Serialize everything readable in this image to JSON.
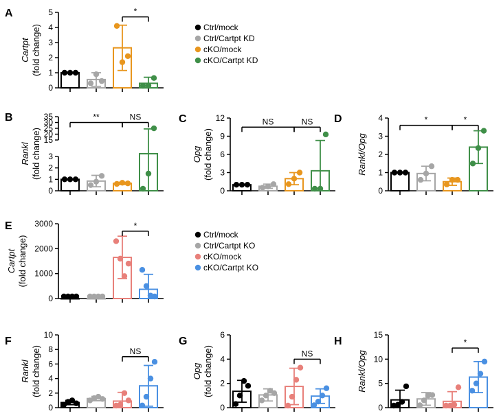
{
  "figure": {
    "legend_top": {
      "entries": [
        {
          "label": "Ctrl/mock",
          "color": "#000000"
        },
        {
          "label": "Ctrl/Cartpt KD",
          "color": "#a6a6a6"
        },
        {
          "label": "cKO/mock",
          "color": "#e8961e"
        },
        {
          "label": "cKO/Cartpt KD",
          "color": "#3f8f48"
        }
      ]
    },
    "legend_bottom": {
      "entries": [
        {
          "label": "Ctrl/mock",
          "color": "#000000"
        },
        {
          "label": "Ctrl/Cartpt KO",
          "color": "#a6a6a6"
        },
        {
          "label": "cKO/mock",
          "color": "#e8807a"
        },
        {
          "label": "cKO/Cartpt KO",
          "color": "#4a90e2"
        }
      ]
    }
  },
  "chart_data": [
    {
      "id": "A",
      "type": "bar",
      "panel_label": "A",
      "ylabel_gene": "Cartpt",
      "ylabel_unit": "(fold change)",
      "ylim": [
        0,
        5
      ],
      "yticks": [
        0,
        1,
        2,
        3,
        4,
        5
      ],
      "ytick_labels": [
        "0",
        "1",
        "2",
        "3",
        "4",
        "5"
      ],
      "colors": [
        "#000000",
        "#a6a6a6",
        "#e8961e",
        "#3f8f48"
      ],
      "means": [
        1.0,
        0.55,
        2.65,
        0.3
      ],
      "sd": [
        0.0,
        0.45,
        1.5,
        0.4
      ],
      "points": [
        [
          1.0,
          1.0,
          1.0
        ],
        [
          0.3,
          0.9,
          0.45
        ],
        [
          4.1,
          1.7,
          2.1
        ],
        [
          0.1,
          0.15,
          0.65
        ]
      ],
      "significance": [
        {
          "from": 2,
          "to": 3,
          "label": "*",
          "y": 4.7
        }
      ]
    },
    {
      "id": "B",
      "type": "bar",
      "panel_label": "B",
      "ylabel_gene": "Rankl",
      "ylabel_unit": "(fold change)",
      "broken_axis": true,
      "ylim": [
        0,
        35
      ],
      "yticks": [
        0,
        1,
        2,
        3,
        15,
        20,
        25,
        30,
        35
      ],
      "ytick_labels": [
        "0",
        "1",
        "2",
        "3",
        "15",
        "20",
        "25",
        "30",
        "35"
      ],
      "colors": [
        "#000000",
        "#a6a6a6",
        "#e8961e",
        "#3f8f48"
      ],
      "means": [
        1.0,
        0.85,
        0.65,
        10.5
      ],
      "sd": [
        0.0,
        0.5,
        0.1,
        14.0
      ],
      "points": [
        [
          1.0,
          1.0,
          1.0
        ],
        [
          0.5,
          0.8,
          1.3
        ],
        [
          0.6,
          0.7,
          0.65
        ],
        [
          0.1,
          1.5,
          25.0
        ]
      ],
      "significance": [
        {
          "from": 0,
          "to": 2,
          "label": "**",
          "y": 30
        },
        {
          "from": 2,
          "to": 3,
          "label": "NS",
          "y": 30
        }
      ]
    },
    {
      "id": "C",
      "type": "bar",
      "panel_label": "C",
      "ylabel_gene": "Opg",
      "ylabel_unit": "(fold change)",
      "ylim": [
        0,
        12
      ],
      "yticks": [
        0,
        3,
        6,
        9,
        12
      ],
      "ytick_labels": [
        "0",
        "3",
        "6",
        "9",
        "12"
      ],
      "colors": [
        "#000000",
        "#a6a6a6",
        "#e8961e",
        "#3f8f48"
      ],
      "means": [
        1.0,
        0.75,
        2.0,
        3.3
      ],
      "sd": [
        0.0,
        0.35,
        1.0,
        5.0
      ],
      "points": [
        [
          1.0,
          1.0,
          1.0
        ],
        [
          0.5,
          0.7,
          1.1
        ],
        [
          1.1,
          2.0,
          3.0
        ],
        [
          0.2,
          0.3,
          9.3
        ]
      ],
      "significance": [
        {
          "from": 0,
          "to": 2,
          "label": "NS",
          "y": 10.5
        },
        {
          "from": 2,
          "to": 3,
          "label": "NS",
          "y": 10.5
        }
      ]
    },
    {
      "id": "D",
      "type": "bar",
      "panel_label": "D",
      "ylabel_gene": "Rankl/Opg",
      "ylabel_unit": "",
      "ylim": [
        0,
        4
      ],
      "yticks": [
        0,
        1,
        2,
        3,
        4
      ],
      "ytick_labels": [
        "0",
        "1",
        "2",
        "3",
        "4"
      ],
      "colors": [
        "#000000",
        "#a6a6a6",
        "#e8961e",
        "#3f8f48"
      ],
      "means": [
        1.0,
        0.95,
        0.5,
        2.4
      ],
      "sd": [
        0.0,
        0.4,
        0.2,
        0.9
      ],
      "points": [
        [
          1.0,
          1.0,
          1.0
        ],
        [
          0.6,
          0.95,
          1.35
        ],
        [
          0.35,
          0.6,
          0.6
        ],
        [
          1.5,
          2.35,
          3.3
        ]
      ],
      "significance": [
        {
          "from": 0,
          "to": 2,
          "label": "*",
          "y": 3.6
        },
        {
          "from": 2,
          "to": 3,
          "label": "*",
          "y": 3.6
        }
      ]
    },
    {
      "id": "E",
      "type": "bar",
      "panel_label": "E",
      "ylabel_gene": "Cartpt",
      "ylabel_unit": "(fold change)",
      "ylim": [
        0,
        3000
      ],
      "yticks": [
        0,
        1000,
        2000,
        3000
      ],
      "ytick_labels": [
        "0",
        "1000",
        "2000",
        "3000"
      ],
      "colors": [
        "#000000",
        "#a6a6a6",
        "#e8807a",
        "#4a90e2"
      ],
      "means": [
        1,
        1,
        1650,
        370
      ],
      "sd": [
        0,
        0,
        850,
        600
      ],
      "points": [
        [
          1,
          1,
          1,
          1
        ],
        [
          1,
          1,
          1,
          1
        ],
        [
          2300,
          1600,
          900,
          1400
        ],
        [
          1150,
          500,
          120,
          40
        ]
      ],
      "significance": [
        {
          "from": 2,
          "to": 3,
          "label": "*",
          "y": 2700
        }
      ]
    },
    {
      "id": "F",
      "type": "bar",
      "panel_label": "F",
      "ylabel_gene": "Rankl",
      "ylabel_unit": "(fold change)",
      "ylim": [
        0,
        10
      ],
      "yticks": [
        0,
        2,
        4,
        6,
        8,
        10
      ],
      "ytick_labels": [
        "0",
        "2",
        "4",
        "6",
        "8",
        "10"
      ],
      "colors": [
        "#000000",
        "#a6a6a6",
        "#e8807a",
        "#4a90e2"
      ],
      "means": [
        0.7,
        1.25,
        0.9,
        3.0
      ],
      "sd": [
        0.3,
        0.3,
        1.2,
        2.8
      ],
      "points": [
        [
          0.4,
          0.8,
          1.0,
          0.6
        ],
        [
          1.0,
          1.3,
          1.5,
          1.2
        ],
        [
          0.2,
          0.4,
          2.0,
          1.0
        ],
        [
          0.3,
          1.5,
          4.0,
          6.3
        ]
      ],
      "significance": [
        {
          "from": 2,
          "to": 3,
          "label": "NS",
          "y": 7.0
        }
      ]
    },
    {
      "id": "G",
      "type": "bar",
      "panel_label": "G",
      "ylabel_gene": "Opg",
      "ylabel_unit": "(fold change)",
      "ylim": [
        0,
        6
      ],
      "yticks": [
        0,
        2,
        4,
        6
      ],
      "ytick_labels": [
        "0",
        "2",
        "4",
        "6"
      ],
      "colors": [
        "#000000",
        "#a6a6a6",
        "#e8807a",
        "#4a90e2"
      ],
      "means": [
        1.35,
        1.05,
        1.75,
        0.95
      ],
      "sd": [
        0.9,
        0.5,
        1.5,
        0.6
      ],
      "points": [
        [
          0.3,
          1.0,
          2.2,
          1.8
        ],
        [
          0.6,
          1.0,
          1.4,
          1.2
        ],
        [
          0.1,
          0.9,
          2.3,
          3.3
        ],
        [
          0.2,
          0.5,
          1.0,
          1.6
        ]
      ],
      "significance": [
        {
          "from": 2,
          "to": 3,
          "label": "NS",
          "y": 4.0
        }
      ]
    },
    {
      "id": "H",
      "type": "bar",
      "panel_label": "H",
      "ylabel_gene": "Rankl/Opg",
      "ylabel_unit": "",
      "ylim": [
        0,
        15
      ],
      "yticks": [
        0,
        5,
        10,
        15
      ],
      "ytick_labels": [
        "0",
        "5",
        "10",
        "15"
      ],
      "colors": [
        "#000000",
        "#a6a6a6",
        "#e8807a",
        "#4a90e2"
      ],
      "means": [
        1.6,
        1.8,
        1.3,
        6.3
      ],
      "sd": [
        2.0,
        1.3,
        2.0,
        3.2
      ],
      "points": [
        [
          0.2,
          0.6,
          1.2,
          4.4
        ],
        [
          0.5,
          1.5,
          2.5,
          2.6
        ],
        [
          0.1,
          0.3,
          0.6,
          4.2
        ],
        [
          3.5,
          5.0,
          7.0,
          9.5
        ]
      ],
      "significance": [
        {
          "from": 2,
          "to": 3,
          "label": "*",
          "y": 12.3
        }
      ]
    }
  ]
}
